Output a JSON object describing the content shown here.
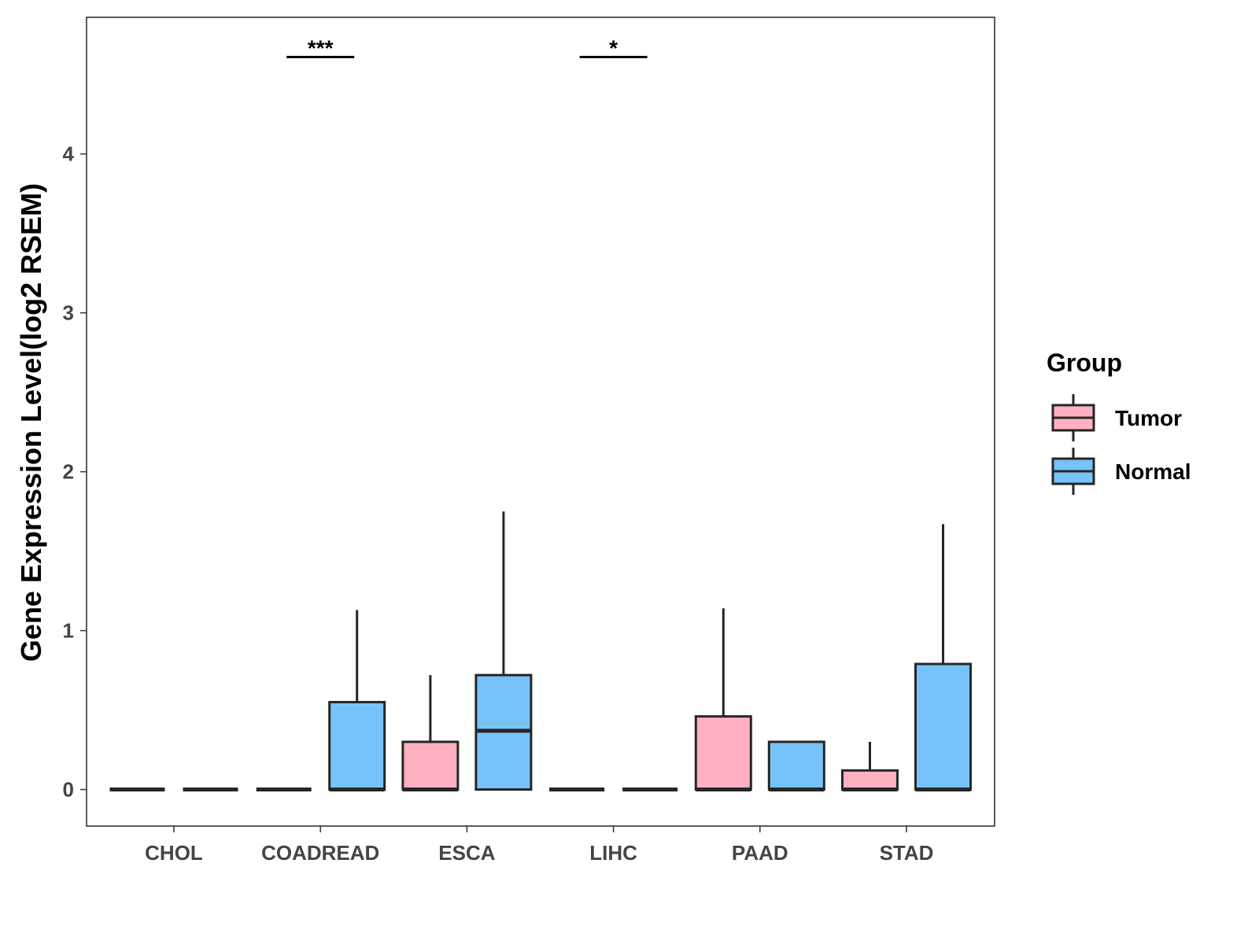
{
  "chart_data": {
    "type": "box",
    "title": "",
    "xlabel": "",
    "ylabel": "Gene Expression Level(log2 RSEM)",
    "ylim": [
      -0.23,
      4.86
    ],
    "yticks": [
      0,
      1,
      2,
      3,
      4
    ],
    "grid": false,
    "categories": [
      "CHOL",
      "COADREAD",
      "ESCA",
      "LIHC",
      "PAAD",
      "STAD"
    ],
    "legend": {
      "title": "Group",
      "position": "right",
      "entries": [
        "Tumor",
        "Normal"
      ]
    },
    "colors": {
      "Tumor": "#FFB1C1",
      "Normal": "#77C3F9",
      "stroke": "#262626"
    },
    "series": [
      {
        "name": "Tumor",
        "boxes": [
          {
            "min": 0,
            "q1": 0,
            "median": 0,
            "q3": 0,
            "max": 0
          },
          {
            "min": 0,
            "q1": 0,
            "median": 0,
            "q3": 0,
            "max": 0
          },
          {
            "min": 0,
            "q1": 0,
            "median": 0,
            "q3": 0.3,
            "max": 0.72
          },
          {
            "min": 0,
            "q1": 0,
            "median": 0,
            "q3": 0,
            "max": 0
          },
          {
            "min": 0,
            "q1": 0,
            "median": 0,
            "q3": 0.46,
            "max": 1.14
          },
          {
            "min": 0,
            "q1": 0,
            "median": 0,
            "q3": 0.12,
            "max": 0.3
          }
        ]
      },
      {
        "name": "Normal",
        "boxes": [
          {
            "min": 0,
            "q1": 0,
            "median": 0,
            "q3": 0,
            "max": 0
          },
          {
            "min": 0,
            "q1": 0,
            "median": 0,
            "q3": 0.55,
            "max": 1.13
          },
          {
            "min": 0,
            "q1": 0,
            "median": 0.37,
            "q3": 0.72,
            "max": 1.75
          },
          {
            "min": 0,
            "q1": 0,
            "median": 0,
            "q3": 0,
            "max": 0
          },
          {
            "min": 0,
            "q1": 0,
            "median": 0,
            "q3": 0.3,
            "max": 0.3
          },
          {
            "min": 0,
            "q1": 0,
            "median": 0,
            "q3": 0.79,
            "max": 1.67
          }
        ]
      }
    ],
    "annotations": [
      {
        "category": "COADREAD",
        "label": "***",
        "y": 4.61
      },
      {
        "category": "LIHC",
        "label": "*",
        "y": 4.61
      }
    ]
  }
}
